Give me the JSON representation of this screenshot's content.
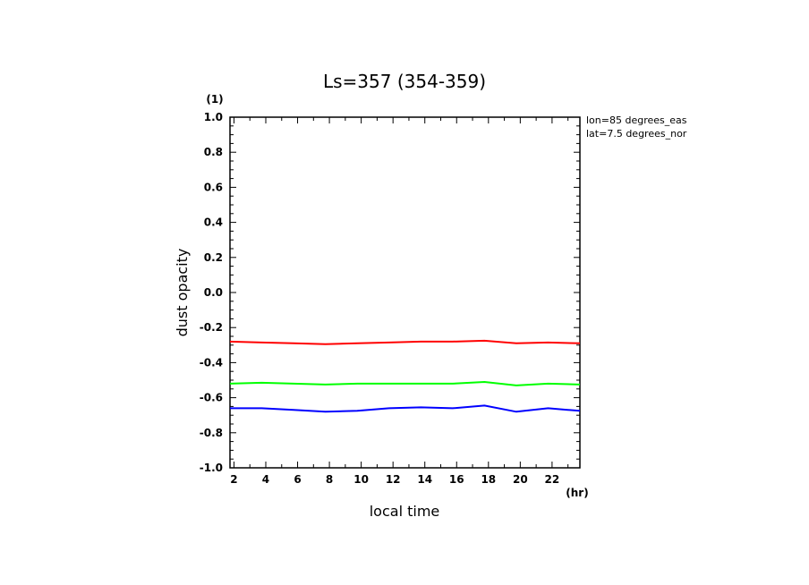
{
  "chart_data": {
    "type": "line",
    "title": "Ls=357 (354-359)",
    "xlabel": "local time",
    "ylabel": "dust opacity",
    "x_unit": "(hr)",
    "y_unit": "(1)",
    "xlim": [
      1.75,
      23.75
    ],
    "ylim": [
      -1.0,
      1.0
    ],
    "x_ticks": [
      2,
      4,
      6,
      8,
      10,
      12,
      14,
      16,
      18,
      20,
      22
    ],
    "y_ticks": [
      -1.0,
      -0.8,
      -0.6,
      -0.4,
      -0.2,
      0.0,
      0.2,
      0.4,
      0.6,
      0.8,
      1.0
    ],
    "y_tick_labels": [
      "-1.0",
      "-0.8",
      "-0.6",
      "-0.4",
      "-0.2",
      "0.0",
      "0.2",
      "0.4",
      "0.6",
      "0.8",
      "1.0"
    ],
    "grid": false,
    "annotations": [
      "lon=85 degrees_eas",
      "lat=7.5 degrees_nor"
    ],
    "x": [
      1.75,
      3.75,
      5.75,
      7.75,
      9.75,
      11.75,
      13.75,
      15.75,
      17.75,
      19.75,
      21.75,
      23.75
    ],
    "series": [
      {
        "color": "#ff0000",
        "values": [
          -0.28,
          -0.285,
          -0.29,
          -0.295,
          -0.29,
          -0.285,
          -0.28,
          -0.28,
          -0.275,
          -0.29,
          -0.285,
          -0.29
        ]
      },
      {
        "color": "#00ff00",
        "values": [
          -0.52,
          -0.515,
          -0.52,
          -0.525,
          -0.52,
          -0.52,
          -0.52,
          -0.52,
          -0.51,
          -0.53,
          -0.52,
          -0.525
        ]
      },
      {
        "color": "#0000ff",
        "values": [
          -0.66,
          -0.66,
          -0.67,
          -0.68,
          -0.675,
          -0.66,
          -0.655,
          -0.66,
          -0.645,
          -0.68,
          -0.66,
          -0.675
        ]
      }
    ]
  }
}
